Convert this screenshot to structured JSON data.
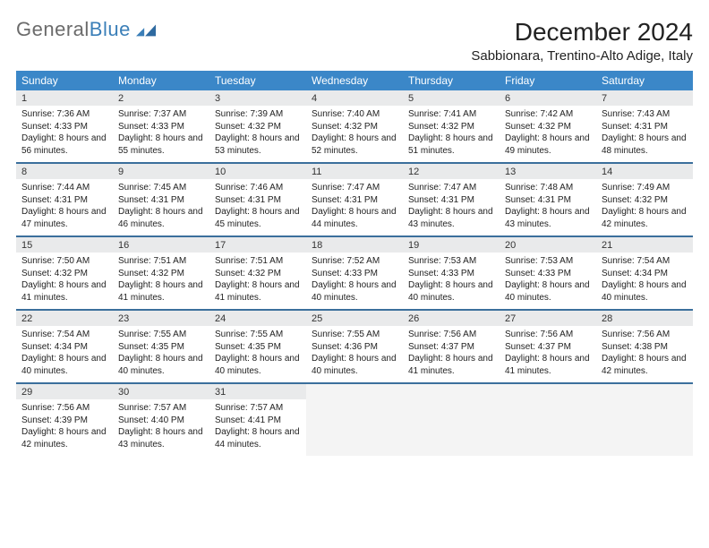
{
  "brand": {
    "word1": "General",
    "word2": "Blue"
  },
  "title": "December 2024",
  "location": "Sabbionara, Trentino-Alto Adige, Italy",
  "colors": {
    "header_bg": "#3b87c8",
    "header_text": "#ffffff",
    "date_bg": "#e9eaeb",
    "week_divider": "#3b6f9c",
    "blank_bg": "#f4f4f4",
    "logo_gray": "#6b6b6b",
    "logo_blue": "#3b7fb8"
  },
  "weekdays": [
    "Sunday",
    "Monday",
    "Tuesday",
    "Wednesday",
    "Thursday",
    "Friday",
    "Saturday"
  ],
  "weeks": [
    [
      {
        "date": "1",
        "sunrise": "7:36 AM",
        "sunset": "4:33 PM",
        "daylight": "8 hours and 56 minutes."
      },
      {
        "date": "2",
        "sunrise": "7:37 AM",
        "sunset": "4:33 PM",
        "daylight": "8 hours and 55 minutes."
      },
      {
        "date": "3",
        "sunrise": "7:39 AM",
        "sunset": "4:32 PM",
        "daylight": "8 hours and 53 minutes."
      },
      {
        "date": "4",
        "sunrise": "7:40 AM",
        "sunset": "4:32 PM",
        "daylight": "8 hours and 52 minutes."
      },
      {
        "date": "5",
        "sunrise": "7:41 AM",
        "sunset": "4:32 PM",
        "daylight": "8 hours and 51 minutes."
      },
      {
        "date": "6",
        "sunrise": "7:42 AM",
        "sunset": "4:32 PM",
        "daylight": "8 hours and 49 minutes."
      },
      {
        "date": "7",
        "sunrise": "7:43 AM",
        "sunset": "4:31 PM",
        "daylight": "8 hours and 48 minutes."
      }
    ],
    [
      {
        "date": "8",
        "sunrise": "7:44 AM",
        "sunset": "4:31 PM",
        "daylight": "8 hours and 47 minutes."
      },
      {
        "date": "9",
        "sunrise": "7:45 AM",
        "sunset": "4:31 PM",
        "daylight": "8 hours and 46 minutes."
      },
      {
        "date": "10",
        "sunrise": "7:46 AM",
        "sunset": "4:31 PM",
        "daylight": "8 hours and 45 minutes."
      },
      {
        "date": "11",
        "sunrise": "7:47 AM",
        "sunset": "4:31 PM",
        "daylight": "8 hours and 44 minutes."
      },
      {
        "date": "12",
        "sunrise": "7:47 AM",
        "sunset": "4:31 PM",
        "daylight": "8 hours and 43 minutes."
      },
      {
        "date": "13",
        "sunrise": "7:48 AM",
        "sunset": "4:31 PM",
        "daylight": "8 hours and 43 minutes."
      },
      {
        "date": "14",
        "sunrise": "7:49 AM",
        "sunset": "4:32 PM",
        "daylight": "8 hours and 42 minutes."
      }
    ],
    [
      {
        "date": "15",
        "sunrise": "7:50 AM",
        "sunset": "4:32 PM",
        "daylight": "8 hours and 41 minutes."
      },
      {
        "date": "16",
        "sunrise": "7:51 AM",
        "sunset": "4:32 PM",
        "daylight": "8 hours and 41 minutes."
      },
      {
        "date": "17",
        "sunrise": "7:51 AM",
        "sunset": "4:32 PM",
        "daylight": "8 hours and 41 minutes."
      },
      {
        "date": "18",
        "sunrise": "7:52 AM",
        "sunset": "4:33 PM",
        "daylight": "8 hours and 40 minutes."
      },
      {
        "date": "19",
        "sunrise": "7:53 AM",
        "sunset": "4:33 PM",
        "daylight": "8 hours and 40 minutes."
      },
      {
        "date": "20",
        "sunrise": "7:53 AM",
        "sunset": "4:33 PM",
        "daylight": "8 hours and 40 minutes."
      },
      {
        "date": "21",
        "sunrise": "7:54 AM",
        "sunset": "4:34 PM",
        "daylight": "8 hours and 40 minutes."
      }
    ],
    [
      {
        "date": "22",
        "sunrise": "7:54 AM",
        "sunset": "4:34 PM",
        "daylight": "8 hours and 40 minutes."
      },
      {
        "date": "23",
        "sunrise": "7:55 AM",
        "sunset": "4:35 PM",
        "daylight": "8 hours and 40 minutes."
      },
      {
        "date": "24",
        "sunrise": "7:55 AM",
        "sunset": "4:35 PM",
        "daylight": "8 hours and 40 minutes."
      },
      {
        "date": "25",
        "sunrise": "7:55 AM",
        "sunset": "4:36 PM",
        "daylight": "8 hours and 40 minutes."
      },
      {
        "date": "26",
        "sunrise": "7:56 AM",
        "sunset": "4:37 PM",
        "daylight": "8 hours and 41 minutes."
      },
      {
        "date": "27",
        "sunrise": "7:56 AM",
        "sunset": "4:37 PM",
        "daylight": "8 hours and 41 minutes."
      },
      {
        "date": "28",
        "sunrise": "7:56 AM",
        "sunset": "4:38 PM",
        "daylight": "8 hours and 42 minutes."
      }
    ],
    [
      {
        "date": "29",
        "sunrise": "7:56 AM",
        "sunset": "4:39 PM",
        "daylight": "8 hours and 42 minutes."
      },
      {
        "date": "30",
        "sunrise": "7:57 AM",
        "sunset": "4:40 PM",
        "daylight": "8 hours and 43 minutes."
      },
      {
        "date": "31",
        "sunrise": "7:57 AM",
        "sunset": "4:41 PM",
        "daylight": "8 hours and 44 minutes."
      },
      null,
      null,
      null,
      null
    ]
  ],
  "labels": {
    "sunrise": "Sunrise:",
    "sunset": "Sunset:",
    "daylight": "Daylight:"
  }
}
